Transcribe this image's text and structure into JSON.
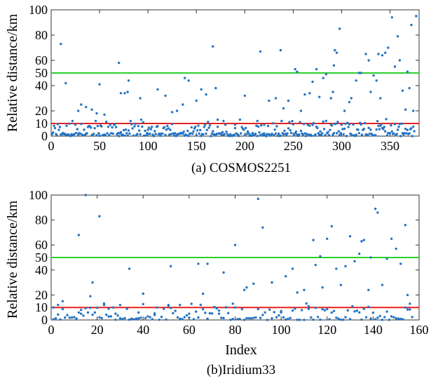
{
  "colors": {
    "points": "#2474c4",
    "line_red": "#e8201e",
    "line_green": "#2ad12a"
  },
  "chart_data": [
    {
      "type": "scatter",
      "caption": "(a) COSMOS2251",
      "ylabel": "Relative distance/km",
      "xlabel": "",
      "xlim": [
        0,
        380
      ],
      "ylim": [
        0,
        100
      ],
      "xticks": [
        0,
        50,
        100,
        150,
        200,
        250,
        300,
        350
      ],
      "yticks": [
        0,
        10,
        20,
        40,
        50,
        60,
        80,
        100
      ],
      "thresholds": [
        {
          "y": 10,
          "color": "red"
        },
        {
          "y": 50,
          "color": "green"
        }
      ],
      "grid": false,
      "series": [
        {
          "name": "COSMOS2251",
          "points": [
            [
              10,
              73
            ],
            [
              15,
              42
            ],
            [
              22,
              12
            ],
            [
              28,
              20
            ],
            [
              31,
              25
            ],
            [
              36,
              23
            ],
            [
              42,
              21
            ],
            [
              47,
              18
            ],
            [
              50,
              41
            ],
            [
              55,
              17
            ],
            [
              70,
              58
            ],
            [
              72,
              34
            ],
            [
              76,
              34
            ],
            [
              79,
              35
            ],
            [
              80,
              44
            ],
            [
              92,
              30
            ],
            [
              100,
              5
            ],
            [
              110,
              37
            ],
            [
              118,
              32
            ],
            [
              125,
              19
            ],
            [
              130,
              20
            ],
            [
              136,
              25
            ],
            [
              138,
              46
            ],
            [
              142,
              44
            ],
            [
              150,
              28
            ],
            [
              155,
              37
            ],
            [
              160,
              33
            ],
            [
              167,
              71
            ],
            [
              170,
              38
            ],
            [
              172,
              13
            ],
            [
              178,
              12
            ],
            [
              190,
              9
            ],
            [
              200,
              32
            ],
            [
              213,
              12
            ],
            [
              216,
              67
            ],
            [
              220,
              9
            ],
            [
              225,
              28
            ],
            [
              232,
              30
            ],
            [
              237,
              68
            ],
            [
              240,
              22
            ],
            [
              245,
              28
            ],
            [
              252,
              53
            ],
            [
              254,
              51
            ],
            [
              258,
              20
            ],
            [
              262,
              33
            ],
            [
              267,
              34
            ],
            [
              270,
              43
            ],
            [
              274,
              53
            ],
            [
              277,
              31
            ],
            [
              281,
              46
            ],
            [
              284,
              49
            ],
            [
              289,
              30
            ],
            [
              291,
              35
            ],
            [
              292,
              56
            ],
            [
              293,
              68
            ],
            [
              295,
              66
            ],
            [
              298,
              85
            ],
            [
              303,
              20
            ],
            [
              308,
              27
            ],
            [
              310,
              30
            ],
            [
              315,
              44
            ],
            [
              318,
              50
            ],
            [
              320,
              50
            ],
            [
              325,
              65
            ],
            [
              328,
              60
            ],
            [
              330,
              35
            ],
            [
              333,
              48
            ],
            [
              336,
              44
            ],
            [
              338,
              65
            ],
            [
              340,
              30
            ],
            [
              342,
              64
            ],
            [
              345,
              66
            ],
            [
              348,
              70
            ],
            [
              352,
              94
            ],
            [
              355,
              55
            ],
            [
              358,
              79
            ],
            [
              360,
              60
            ],
            [
              363,
              36
            ],
            [
              366,
              21
            ],
            [
              368,
              51
            ],
            [
              370,
              38
            ],
            [
              372,
              88
            ],
            [
              374,
              20
            ],
            [
              377,
              95
            ]
          ]
        }
      ]
    },
    {
      "type": "scatter",
      "caption": "(b)Iridium33",
      "ylabel": "Relative distance/km",
      "xlabel": "Index",
      "xlim": [
        0,
        160
      ],
      "ylim": [
        0,
        100
      ],
      "xticks": [
        0,
        20,
        40,
        60,
        80,
        100,
        120,
        140,
        160
      ],
      "yticks": [
        0,
        10,
        20,
        40,
        50,
        60,
        80,
        100
      ],
      "thresholds": [
        {
          "y": 10,
          "color": "red"
        },
        {
          "y": 50,
          "color": "green"
        }
      ],
      "grid": false,
      "series": [
        {
          "name": "Iridium33",
          "points": [
            [
              1,
              10
            ],
            [
              3,
              12
            ],
            [
              5,
              15
            ],
            [
              12,
              68
            ],
            [
              13,
              5
            ],
            [
              15,
              100
            ],
            [
              17,
              19
            ],
            [
              18,
              30
            ],
            [
              21,
              83
            ],
            [
              23,
              12
            ],
            [
              25,
              9
            ],
            [
              28,
              5
            ],
            [
              30,
              12
            ],
            [
              34,
              41
            ],
            [
              38,
              6
            ],
            [
              40,
              21
            ],
            [
              45,
              4
            ],
            [
              51,
              12
            ],
            [
              52,
              43
            ],
            [
              56,
              12
            ],
            [
              60,
              5
            ],
            [
              64,
              45
            ],
            [
              66,
              21
            ],
            [
              68,
              45
            ],
            [
              73,
              5
            ],
            [
              75,
              38
            ],
            [
              79,
              13
            ],
            [
              80,
              60
            ],
            [
              84,
              24
            ],
            [
              85,
              26
            ],
            [
              88,
              29
            ],
            [
              90,
              97
            ],
            [
              92,
              74
            ],
            [
              96,
              30
            ],
            [
              100,
              6
            ],
            [
              102,
              35
            ],
            [
              105,
              41
            ],
            [
              107,
              22
            ],
            [
              110,
              24
            ],
            [
              112,
              11
            ],
            [
              114,
              64
            ],
            [
              115,
              44
            ],
            [
              117,
              51
            ],
            [
              118,
              26
            ],
            [
              120,
              65
            ],
            [
              122,
              75
            ],
            [
              124,
              41
            ],
            [
              126,
              28
            ],
            [
              128,
              43
            ],
            [
              130,
              67
            ],
            [
              132,
              47
            ],
            [
              134,
              53
            ],
            [
              135,
              63
            ],
            [
              136,
              64
            ],
            [
              138,
              24
            ],
            [
              139,
              50
            ],
            [
              141,
              89
            ],
            [
              142,
              86
            ],
            [
              144,
              28
            ],
            [
              146,
              49
            ],
            [
              148,
              65
            ],
            [
              150,
              57
            ],
            [
              152,
              45
            ],
            [
              154,
              76
            ],
            [
              155,
              20
            ],
            [
              156,
              13
            ]
          ]
        }
      ]
    }
  ]
}
